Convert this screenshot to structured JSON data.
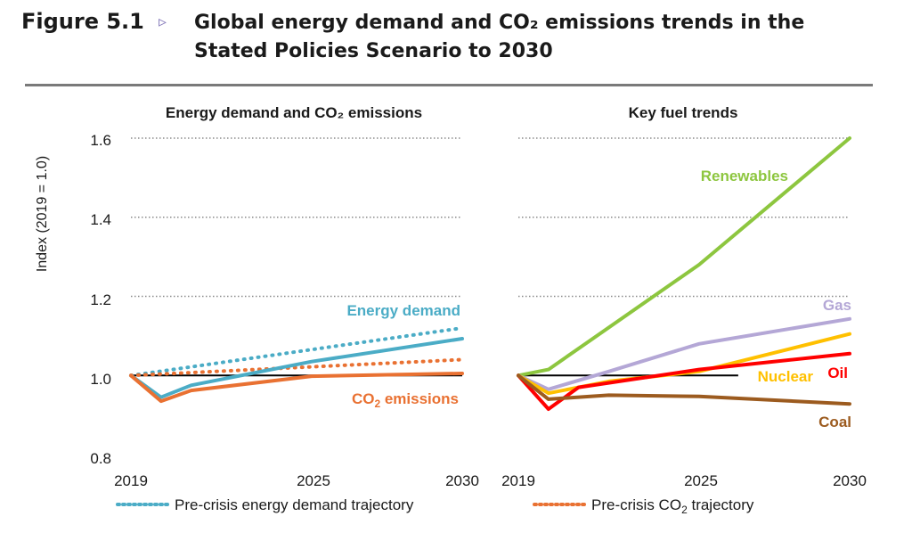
{
  "figure": {
    "label": "Figure 5.1",
    "marker": "▹",
    "title": "Global energy demand and CO₂ emissions trends in the Stated Policies Scenario to 2030"
  },
  "chart_data": [
    {
      "type": "line",
      "title": "Energy demand and CO₂ emissions",
      "ylabel": "Index (2019 = 1.0)",
      "ylim": [
        0.8,
        1.6
      ],
      "yticks": [
        "0.8",
        "1.0",
        "1.2",
        "1.4",
        "1.6"
      ],
      "xticks": [
        "2019",
        "2025",
        "2030"
      ],
      "grid": "dotted horizontal",
      "series": [
        {
          "name": "Energy demand",
          "color": "#4bacc6",
          "style": "solid",
          "x": [
            2019,
            2020,
            2021,
            2025,
            2030
          ],
          "y": [
            1.0,
            0.945,
            0.975,
            1.035,
            1.093
          ]
        },
        {
          "name": "CO₂ emissions",
          "color": "#e97132",
          "style": "solid",
          "x": [
            2019,
            2020,
            2021,
            2025,
            2030
          ],
          "y": [
            1.0,
            0.935,
            0.962,
            0.998,
            1.005
          ]
        },
        {
          "name": "Pre-crisis energy demand trajectory",
          "color": "#4bacc6",
          "style": "dotted",
          "x": [
            2019,
            2030
          ],
          "y": [
            1.0,
            1.12
          ]
        },
        {
          "name": "Pre-crisis CO₂ trajectory",
          "color": "#e97132",
          "style": "dotted",
          "x": [
            2019,
            2030
          ],
          "y": [
            1.0,
            1.04
          ]
        }
      ],
      "labels": {
        "energy": "Energy demand",
        "co2_prefix": "CO",
        "co2_sub": "2",
        "co2_suffix": " emissions"
      }
    },
    {
      "type": "line",
      "title": "Key fuel trends",
      "ylim": [
        0.8,
        1.6
      ],
      "xticks": [
        "2019",
        "2025",
        "2030"
      ],
      "grid": "dotted horizontal",
      "series": [
        {
          "name": "Renewables",
          "color": "#8dc63f",
          "style": "solid",
          "x": [
            2019,
            2020,
            2025,
            2030
          ],
          "y": [
            1.0,
            1.015,
            1.28,
            1.6
          ]
        },
        {
          "name": "Gas",
          "color": "#b4a7d6",
          "style": "solid",
          "x": [
            2019,
            2020,
            2022,
            2025,
            2030
          ],
          "y": [
            1.0,
            0.965,
            1.01,
            1.08,
            1.143
          ]
        },
        {
          "name": "Nuclear",
          "color": "#ffc000",
          "style": "solid",
          "x": [
            2019,
            2020,
            2022,
            2025,
            2030
          ],
          "y": [
            1.0,
            0.955,
            0.985,
            1.01,
            1.105
          ]
        },
        {
          "name": "Oil",
          "color": "#ff0000",
          "style": "solid",
          "x": [
            2019,
            2020,
            2021,
            2025,
            2030
          ],
          "y": [
            1.0,
            0.915,
            0.97,
            1.015,
            1.055
          ]
        },
        {
          "name": "Coal",
          "color": "#9c5b1f",
          "style": "solid",
          "x": [
            2019,
            2020,
            2022,
            2025,
            2030
          ],
          "y": [
            1.0,
            0.94,
            0.95,
            0.947,
            0.928
          ]
        }
      ],
      "labels": {
        "renewables": "Renewables",
        "gas": "Gas",
        "nuclear": "Nuclear",
        "oil": "Oil",
        "coal": "Coal"
      }
    }
  ],
  "legend": {
    "energy": "Pre-crisis energy demand trajectory",
    "co2_prefix": "Pre-crisis CO",
    "co2_sub": "2",
    "co2_suffix": " trajectory"
  }
}
